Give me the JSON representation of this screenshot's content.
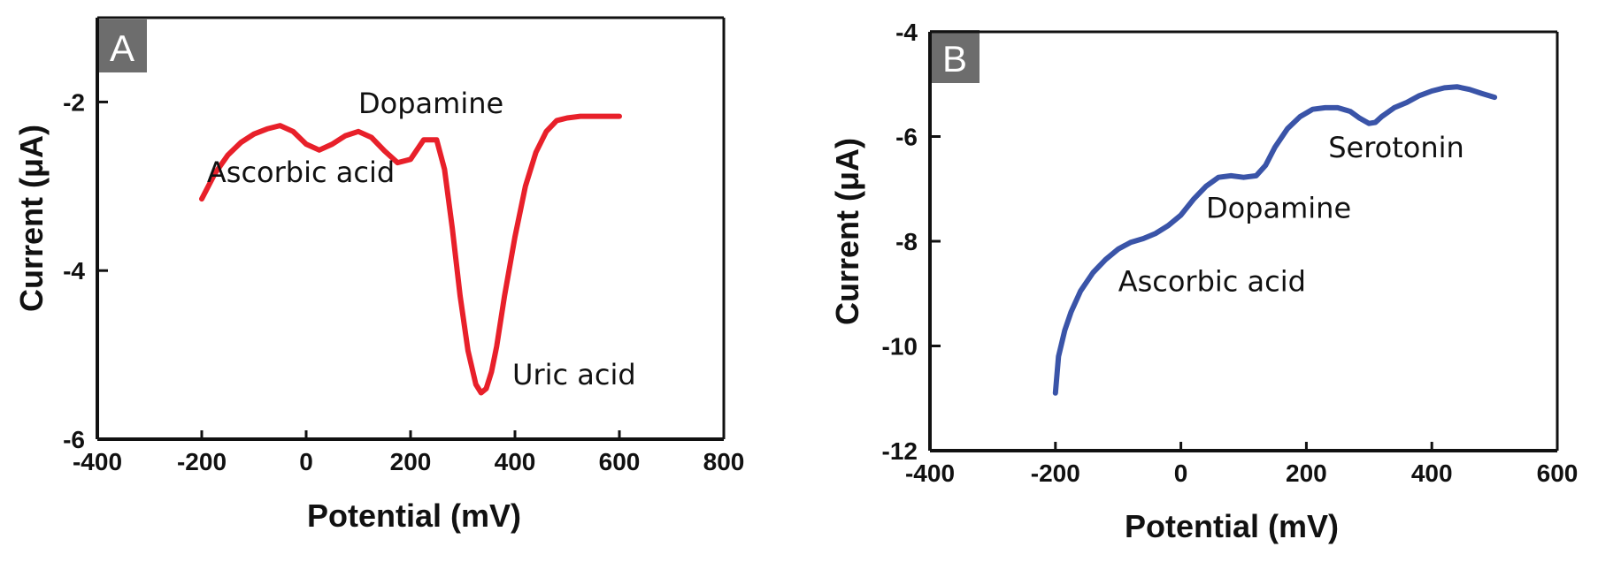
{
  "chart_data": [
    {
      "type": "line",
      "panel": "A",
      "xlabel": "Potential (mV)",
      "ylabel": "Current (μA)",
      "xlim": [
        -400,
        800
      ],
      "ylim": [
        -6,
        -1
      ],
      "xticks": [
        -400,
        -200,
        0,
        200,
        400,
        600,
        800
      ],
      "yticks": [
        -6,
        -4,
        -2
      ],
      "xtick_labels": [
        "-400",
        "-200",
        "0",
        "200",
        "400",
        "600",
        "800"
      ],
      "ytick_labels": [
        "-6",
        "-4",
        "-2"
      ],
      "grid": false,
      "series": [
        {
          "color": "#e8202a",
          "x": [
            -200,
            -175,
            -150,
            -125,
            -100,
            -75,
            -50,
            -25,
            0,
            25,
            50,
            75,
            100,
            125,
            150,
            175,
            200,
            225,
            250,
            265,
            280,
            295,
            310,
            325,
            335,
            345,
            355,
            365,
            380,
            400,
            420,
            440,
            460,
            480,
            500,
            525,
            550,
            600
          ],
          "y": [
            -3.15,
            -2.85,
            -2.63,
            -2.48,
            -2.38,
            -2.32,
            -2.28,
            -2.35,
            -2.5,
            -2.57,
            -2.5,
            -2.4,
            -2.35,
            -2.42,
            -2.58,
            -2.72,
            -2.68,
            -2.45,
            -2.45,
            -2.8,
            -3.5,
            -4.3,
            -4.95,
            -5.35,
            -5.45,
            -5.4,
            -5.2,
            -4.9,
            -4.3,
            -3.6,
            -3.0,
            -2.6,
            -2.35,
            -2.22,
            -2.19,
            -2.17,
            -2.17,
            -2.17
          ]
        }
      ],
      "annotations": [
        {
          "text": "Ascorbic acid",
          "x": -190,
          "y": -2.95
        },
        {
          "text": "Dopamine",
          "x": 100,
          "y": -2.13
        },
        {
          "text": "Uric acid",
          "x": 395,
          "y": -5.35
        }
      ]
    },
    {
      "type": "line",
      "panel": "B",
      "xlabel": "Potential (mV)",
      "ylabel": "Current (μA)",
      "xlim": [
        -400,
        600
      ],
      "ylim": [
        -12,
        -4
      ],
      "xticks": [
        -400,
        -200,
        0,
        200,
        400,
        600
      ],
      "yticks": [
        -12,
        -10,
        -8,
        -6,
        -4
      ],
      "xtick_labels": [
        "-400",
        "-200",
        "0",
        "200",
        "400",
        "600"
      ],
      "ytick_labels": [
        "-12",
        "-10",
        "-8",
        "-6",
        "-4"
      ],
      "grid": false,
      "series": [
        {
          "color": "#3a54a8",
          "x": [
            -200,
            -195,
            -185,
            -175,
            -160,
            -140,
            -120,
            -100,
            -80,
            -60,
            -40,
            -20,
            0,
            20,
            40,
            60,
            80,
            100,
            120,
            135,
            150,
            170,
            190,
            210,
            230,
            250,
            270,
            285,
            300,
            310,
            320,
            340,
            360,
            380,
            400,
            420,
            440,
            460,
            480,
            500
          ],
          "y": [
            -10.9,
            -10.2,
            -9.7,
            -9.35,
            -8.95,
            -8.6,
            -8.35,
            -8.15,
            -8.02,
            -7.95,
            -7.85,
            -7.7,
            -7.5,
            -7.2,
            -6.95,
            -6.78,
            -6.75,
            -6.78,
            -6.75,
            -6.55,
            -6.2,
            -5.85,
            -5.62,
            -5.48,
            -5.45,
            -5.45,
            -5.52,
            -5.65,
            -5.75,
            -5.73,
            -5.62,
            -5.45,
            -5.35,
            -5.22,
            -5.13,
            -5.07,
            -5.05,
            -5.1,
            -5.18,
            -5.25
          ]
        }
      ],
      "annotations": [
        {
          "text": "Ascorbic acid",
          "x": -100,
          "y": -8.95
        },
        {
          "text": "Dopamine",
          "x": 40,
          "y": -7.55
        },
        {
          "text": "Serotonin",
          "x": 235,
          "y": -6.4
        }
      ]
    }
  ]
}
